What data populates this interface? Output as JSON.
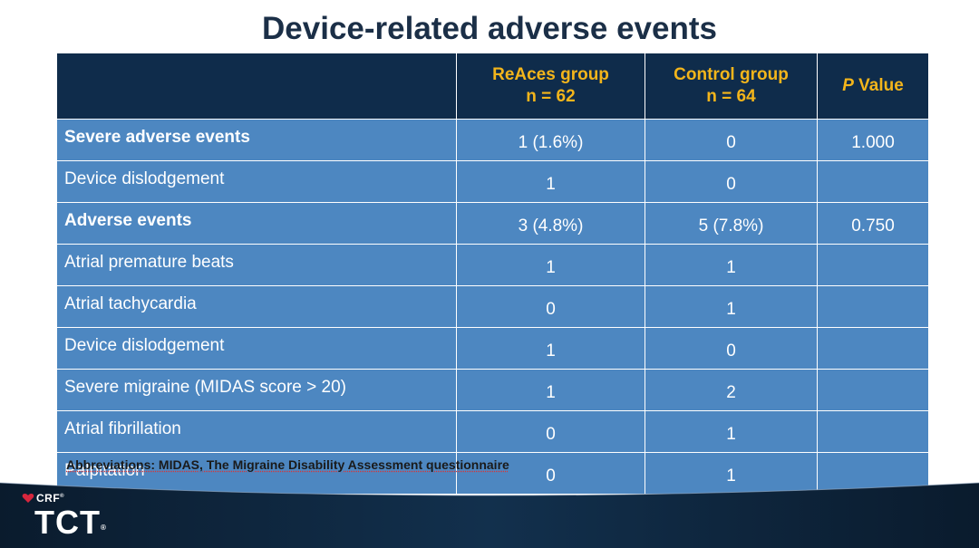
{
  "title": "Device-related adverse events",
  "table": {
    "headers": [
      {
        "line1": "",
        "line2": ""
      },
      {
        "line1": "ReAces group",
        "line2": "n = 62"
      },
      {
        "line1": "Control group",
        "line2": "n = 64"
      },
      {
        "italic": "P",
        "rest": " Value"
      }
    ],
    "rows": [
      {
        "label": "Severe adverse events",
        "bold": true,
        "reaces": "1 (1.6%)",
        "control": "0",
        "pvalue": "1.000"
      },
      {
        "label": "Device dislodgement",
        "bold": false,
        "reaces": "1",
        "control": "0",
        "pvalue": ""
      },
      {
        "label": "Adverse events",
        "bold": true,
        "reaces": "3 (4.8%)",
        "control": "5 (7.8%)",
        "pvalue": "0.750"
      },
      {
        "label": "Atrial premature beats",
        "bold": false,
        "reaces": "1",
        "control": "1",
        "pvalue": ""
      },
      {
        "label": "Atrial tachycardia",
        "bold": false,
        "reaces": "0",
        "control": "1",
        "pvalue": ""
      },
      {
        "label": "Device dislodgement",
        "bold": false,
        "reaces": "1",
        "control": "0",
        "pvalue": ""
      },
      {
        "label": "Severe migraine (MIDAS score > 20)",
        "bold": false,
        "reaces": "1",
        "control": "2",
        "pvalue": ""
      },
      {
        "label": "Atrial fibrillation",
        "bold": false,
        "reaces": "0",
        "control": "1",
        "pvalue": ""
      },
      {
        "label": "Palpitation",
        "bold": false,
        "reaces": "0",
        "control": "1",
        "pvalue": ""
      }
    ]
  },
  "footnote": "Abbreviations: MIDAS, The Migraine Disability Assessment questionnaire",
  "logo": {
    "crf": "CRF",
    "crf_mark": "®",
    "tct": "TCT",
    "tct_mark": "®"
  },
  "colors": {
    "title": "#1b2f47",
    "header_bg": "#0f2c4b",
    "header_text": "#f3b51b",
    "row_bg": "#4d87c1",
    "footer_dark": "#0c1f33"
  }
}
